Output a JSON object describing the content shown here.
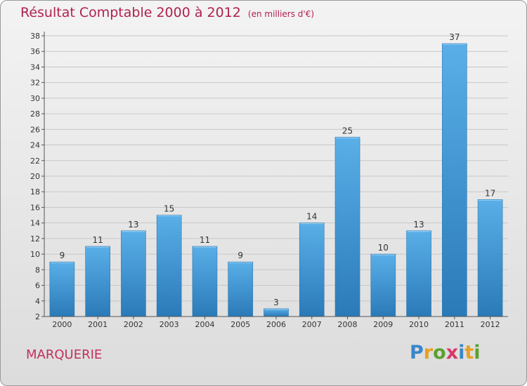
{
  "header": {
    "title": "Résultat Comptable 2000 à 2012",
    "unit": "(en milliers d'€)"
  },
  "commune": "MARQUERIE",
  "logo": {
    "text": "Proxiti",
    "letters": [
      "P",
      "r",
      "o",
      "x",
      "i",
      "t",
      "i"
    ],
    "letter_colors": [
      "#3a86c8",
      "#e8a020",
      "#5aa12e",
      "#d63a6a",
      "#3a86c8",
      "#e8a020",
      "#5aa12e"
    ]
  },
  "colors": {
    "bar_top": "#5aafe8",
    "bar_bottom": "#2a7ab8",
    "title": "#b0214e",
    "grid": "#c8c8c8"
  },
  "chart_data": {
    "type": "bar",
    "title": "Résultat Comptable 2000 à 2012",
    "subtitle": "(en milliers d'€)",
    "xlabel": "",
    "ylabel": "",
    "categories": [
      "2000",
      "2001",
      "2002",
      "2003",
      "2004",
      "2005",
      "2006",
      "2007",
      "2008",
      "2009",
      "2010",
      "2011",
      "2012"
    ],
    "values": [
      9,
      11,
      13,
      15,
      11,
      9,
      3,
      14,
      25,
      10,
      13,
      37,
      17
    ],
    "ylim": [
      2,
      38
    ],
    "yticks": [
      2,
      4,
      6,
      8,
      10,
      12,
      14,
      16,
      18,
      20,
      22,
      24,
      26,
      28,
      30,
      32,
      34,
      36,
      38
    ],
    "grid": true
  }
}
